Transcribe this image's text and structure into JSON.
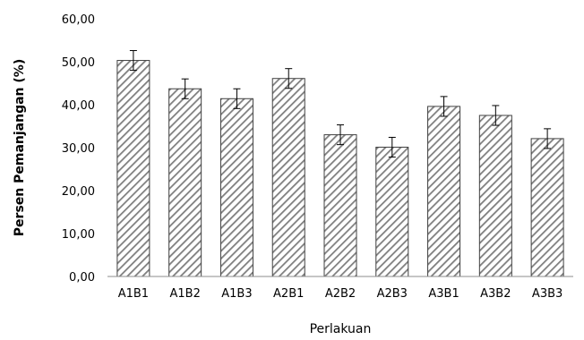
{
  "chart_data": {
    "type": "bar",
    "categories": [
      "A1B1",
      "A1B2",
      "A1B3",
      "A2B1",
      "A2B2",
      "A2B3",
      "A3B1",
      "A3B2",
      "A3B3"
    ],
    "values": [
      50.3,
      43.7,
      41.4,
      46.1,
      33.0,
      30.1,
      39.6,
      37.5,
      32.1
    ],
    "error": [
      2.3,
      2.3,
      2.3,
      2.3,
      2.3,
      2.3,
      2.3,
      2.3,
      2.3
    ],
    "xlabel": "Perlakuan",
    "ylabel": "Persen Pemanjangan (%)",
    "ylim": [
      0,
      60
    ],
    "yticks": [
      "0,00",
      "10,00",
      "20,00",
      "30,00",
      "40,00",
      "50,00",
      "60,00"
    ],
    "grid": false,
    "bar_pattern": "diagonal-hatch",
    "colors": {
      "hatch": "#7f7f7f",
      "bar_border": "#404040",
      "axis": "#8c8c8c",
      "error_bar": "#000000"
    }
  }
}
